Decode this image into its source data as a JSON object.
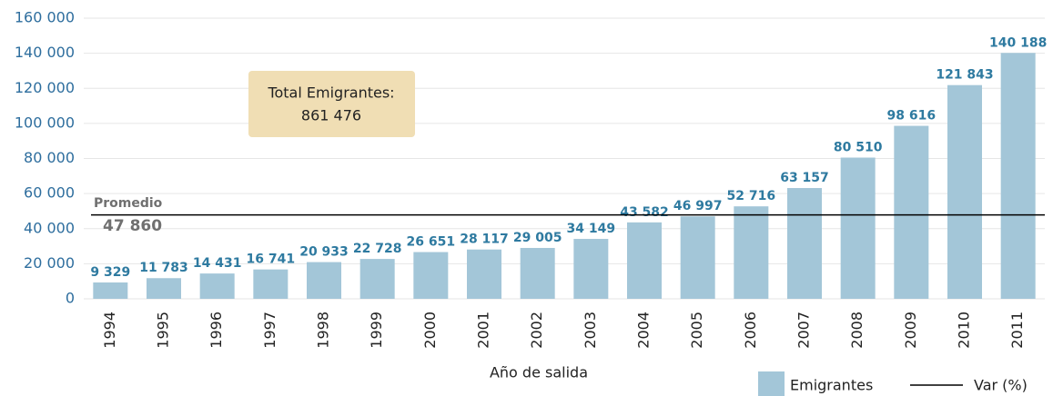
{
  "chart_data": {
    "type": "bar",
    "x_label": "Año de salida",
    "categories": [
      "1994",
      "1995",
      "1996",
      "1997",
      "1998",
      "1999",
      "2000",
      "2001",
      "2002",
      "2003",
      "2004",
      "2005",
      "2006",
      "2007",
      "2008",
      "2009",
      "2010",
      "2011"
    ],
    "series": [
      {
        "name": "Emigrantes",
        "color": "#a3c6d8",
        "values": [
          9329,
          11783,
          14431,
          16741,
          20933,
          22728,
          26651,
          28117,
          29005,
          34149,
          43582,
          46997,
          52716,
          63157,
          80510,
          98616,
          121843,
          140188
        ],
        "value_labels": [
          "9 329",
          "11 783",
          "14 431",
          "16 741",
          "20 933",
          "22 728",
          "26 651",
          "28 117",
          "29 005",
          "34 149",
          "43 582",
          "46 997",
          "52 716",
          "63 157",
          "80 510",
          "98 616",
          "121 843",
          "140 188"
        ]
      }
    ],
    "reference_line": {
      "name": "Var (%)",
      "label": "Promedio",
      "value": 47860,
      "value_label": "47 860",
      "color": "#000000"
    },
    "annotation": [
      "Total Emigrantes:",
      "861 476"
    ],
    "ylim": [
      0,
      160000
    ],
    "yticks": [
      0,
      {
        "value": 20000,
        "label": "20 000"
      },
      {
        "value": 40000,
        "label": "40 000"
      },
      {
        "value": 60000,
        "label": "60 000"
      },
      {
        "value": 80000,
        "label": "80 000"
      },
      {
        "value": 100000,
        "label": "100 000"
      },
      {
        "value": 120000,
        "label": "120 000"
      },
      {
        "value": 140000,
        "label": "140 000"
      },
      {
        "value": 160000,
        "label": "160 000"
      }
    ],
    "grid": true
  }
}
